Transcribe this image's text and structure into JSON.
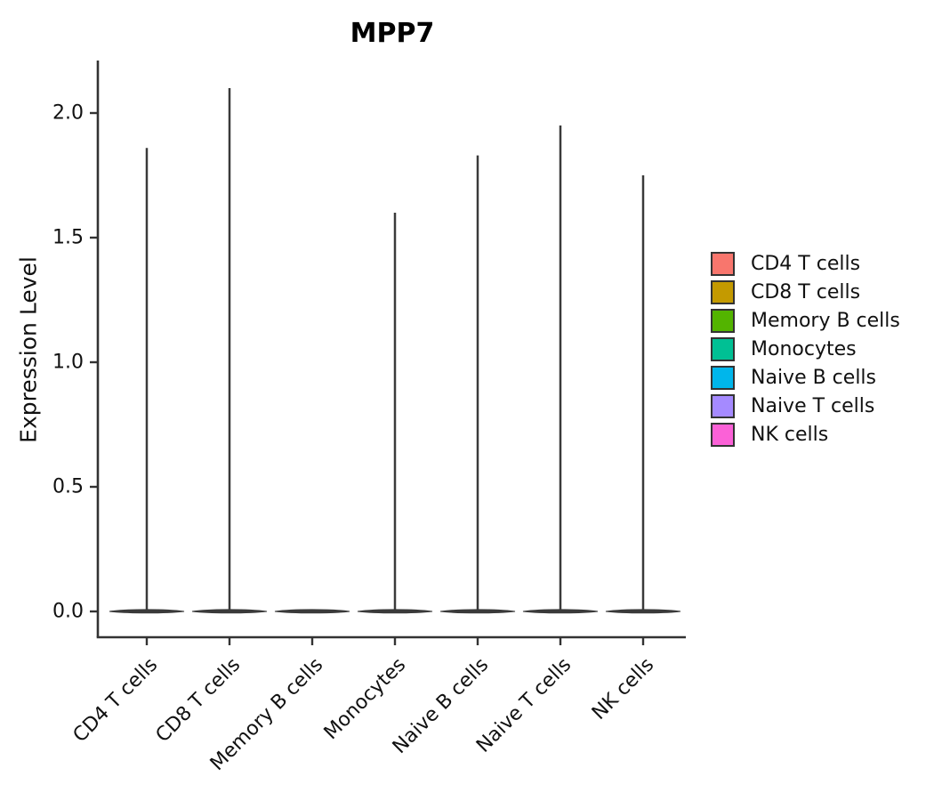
{
  "title": "MPP7",
  "axes": {
    "ylabel": "Expression Level",
    "xlabel": ""
  },
  "chart_data": {
    "type": "violin",
    "title": "MPP7",
    "ylabel": "Expression Level",
    "xlabel": "",
    "categories": [
      "CD4 T cells",
      "CD8 T cells",
      "Memory B cells",
      "Monocytes",
      "Naive B cells",
      "Naive T cells",
      "NK cells"
    ],
    "series": [
      {
        "name": "CD4 T cells",
        "color": "#F8766D",
        "min_expression": 0,
        "max_expression": 1.86,
        "shape": "spike-at-zero"
      },
      {
        "name": "CD8 T cells",
        "color": "#C49A00",
        "min_expression": 0,
        "max_expression": 2.1,
        "shape": "spike-at-zero"
      },
      {
        "name": "Memory B cells",
        "color": "#53B400",
        "min_expression": 0,
        "max_expression": 0,
        "shape": "flat-at-zero"
      },
      {
        "name": "Monocytes",
        "color": "#00C094",
        "min_expression": 0,
        "max_expression": 1.6,
        "shape": "spike-at-zero"
      },
      {
        "name": "Naive B cells",
        "color": "#00B6EB",
        "min_expression": 0,
        "max_expression": 1.83,
        "shape": "spike-at-zero"
      },
      {
        "name": "Naive T cells",
        "color": "#A58AFF",
        "min_expression": 0,
        "max_expression": 1.95,
        "shape": "spike-at-zero"
      },
      {
        "name": "NK cells",
        "color": "#FB61D7",
        "min_expression": 0,
        "max_expression": 1.75,
        "shape": "spike-at-zero"
      }
    ],
    "yticks": [
      "0.0",
      "0.5",
      "1.0",
      "1.5",
      "2.0"
    ],
    "ylim": [
      -0.11,
      2.2
    ],
    "grid": false,
    "legend_position": "right",
    "outline_color": "#3a3a3a",
    "axis_color": "#333333"
  }
}
